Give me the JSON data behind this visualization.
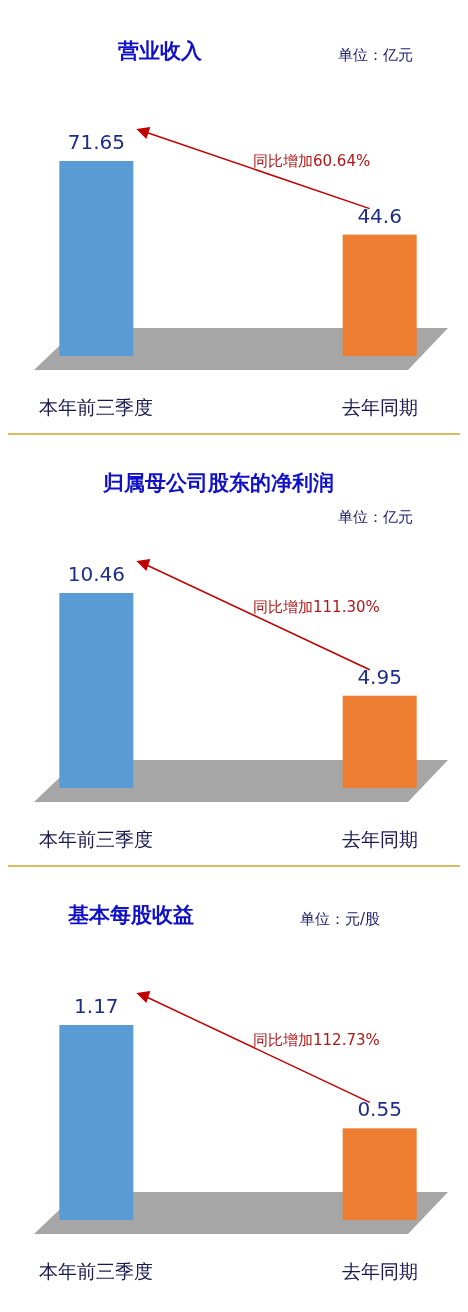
{
  "chart_data": [
    {
      "type": "bar",
      "title": "营业收入",
      "subtitle": "单位：亿元",
      "categories": [
        "本年前三季度",
        "去年同期"
      ],
      "values": [
        71.65,
        44.6
      ],
      "colors": [
        "#5b9bd5",
        "#ed7d31"
      ],
      "data_labels": true,
      "annotations": [
        "同比增加60.64%"
      ]
    },
    {
      "type": "bar",
      "title": "归属母公司股东的净利润",
      "subtitle": "单位：亿元",
      "categories": [
        "本年前三季度",
        "去年同期"
      ],
      "values": [
        10.46,
        4.95
      ],
      "colors": [
        "#5b9bd5",
        "#ed7d31"
      ],
      "data_labels": true,
      "annotations": [
        "同比增加111.30%"
      ]
    },
    {
      "type": "bar",
      "title": "基本每股收益",
      "subtitle": "单位：元/股",
      "categories": [
        "本年前三季度",
        "去年同期"
      ],
      "values": [
        1.17,
        0.55
      ],
      "colors": [
        "#5b9bd5",
        "#ed7d31"
      ],
      "data_labels": true,
      "annotations": [
        "同比增加112.73%"
      ]
    }
  ]
}
